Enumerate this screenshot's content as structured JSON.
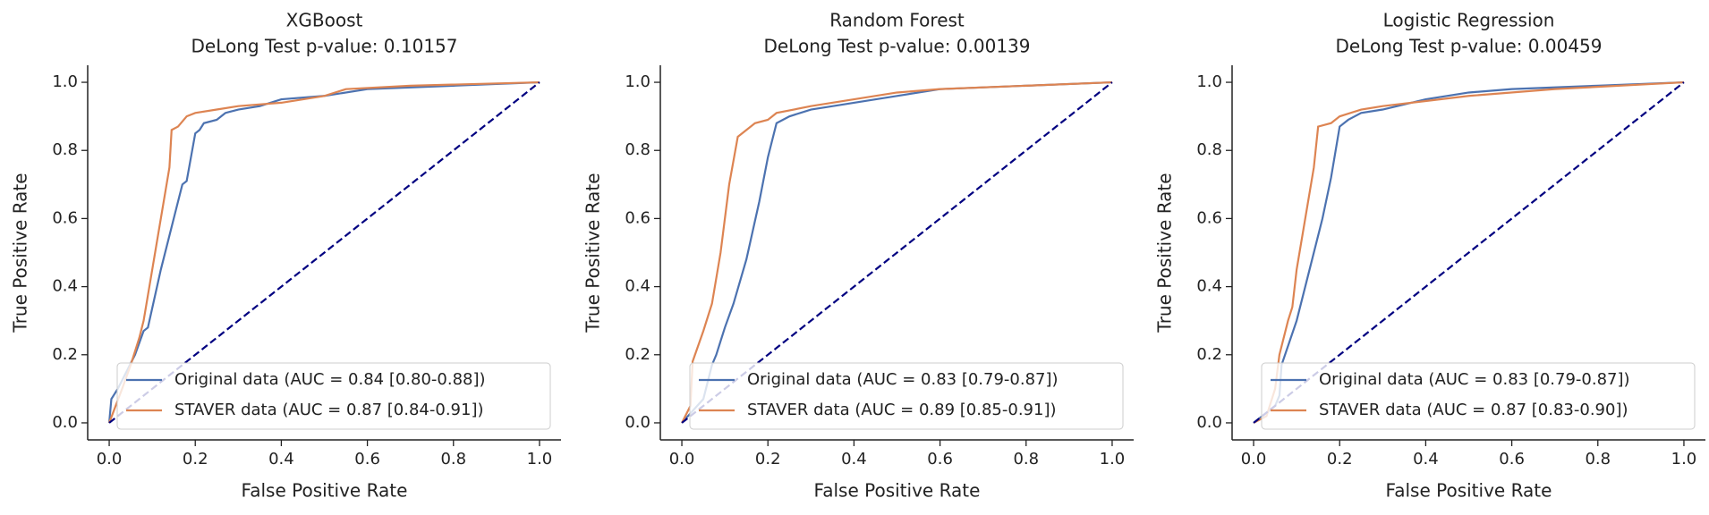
{
  "chart_data": [
    {
      "type": "line",
      "title": "XGBoost",
      "subtitle": "DeLong Test p-value: 0.10157",
      "xlabel": "False Positive Rate",
      "ylabel": "True Positive Rate",
      "xlim": [
        -0.05,
        1.05
      ],
      "ylim": [
        -0.05,
        1.05
      ],
      "xticks": [
        {
          "value": 0,
          "label": "0.0"
        },
        0.2,
        0.4,
        0.6,
        0.8,
        {
          "value": 1,
          "label": "1.0"
        }
      ],
      "yticks": [
        {
          "value": 0,
          "label": "0.0"
        },
        0.2,
        0.4,
        0.6,
        0.8,
        {
          "value": 1,
          "label": "1.0"
        }
      ],
      "legend": "lower right",
      "series": [
        {
          "name": "Original data (AUC = 0.84 [0.80-0.88])",
          "color": "#4c72b0",
          "x": [
            0,
            0.005,
            0.02,
            0.04,
            0.06,
            0.08,
            0.09,
            0.12,
            0.15,
            0.17,
            0.18,
            0.2,
            0.21,
            0.22,
            0.25,
            0.27,
            0.3,
            0.35,
            0.4,
            0.5,
            0.6,
            0.8,
            1
          ],
          "values": [
            0,
            0.07,
            0.1,
            0.15,
            0.2,
            0.27,
            0.28,
            0.45,
            0.6,
            0.7,
            0.71,
            0.85,
            0.86,
            0.88,
            0.89,
            0.91,
            0.92,
            0.93,
            0.95,
            0.96,
            0.98,
            0.99,
            1
          ]
        },
        {
          "name": "STAVER data (AUC = 0.87 [0.84-0.91])",
          "color": "#dd8452",
          "x": [
            0,
            0.03,
            0.05,
            0.07,
            0.08,
            0.1,
            0.12,
            0.14,
            0.145,
            0.16,
            0.18,
            0.2,
            0.25,
            0.3,
            0.4,
            0.5,
            0.55,
            0.7,
            1
          ],
          "values": [
            0,
            0.1,
            0.17,
            0.25,
            0.3,
            0.45,
            0.6,
            0.75,
            0.86,
            0.87,
            0.9,
            0.91,
            0.92,
            0.93,
            0.94,
            0.96,
            0.98,
            0.99,
            1
          ]
        }
      ],
      "diagonal": {
        "color": "#000080",
        "x": [
          0,
          1
        ],
        "values": [
          0,
          1
        ]
      }
    },
    {
      "type": "line",
      "title": "Random Forest",
      "subtitle": "DeLong Test p-value: 0.00139",
      "xlabel": "False Positive Rate",
      "ylabel": "True Positive Rate",
      "xlim": [
        -0.05,
        1.05
      ],
      "ylim": [
        -0.05,
        1.05
      ],
      "xticks": [
        {
          "value": 0,
          "label": "0.0"
        },
        0.2,
        0.4,
        0.6,
        0.8,
        {
          "value": 1,
          "label": "1.0"
        }
      ],
      "yticks": [
        {
          "value": 0,
          "label": "0.0"
        },
        0.2,
        0.4,
        0.6,
        0.8,
        {
          "value": 1,
          "label": "1.0"
        }
      ],
      "legend": "lower right",
      "series": [
        {
          "name": "Original data (AUC = 0.83 [0.79-0.87])",
          "color": "#4c72b0",
          "x": [
            0,
            0.05,
            0.07,
            0.08,
            0.1,
            0.12,
            0.15,
            0.18,
            0.2,
            0.22,
            0.25,
            0.3,
            0.4,
            0.5,
            0.6,
            0.8,
            1
          ],
          "values": [
            0,
            0.07,
            0.17,
            0.2,
            0.28,
            0.35,
            0.48,
            0.65,
            0.78,
            0.88,
            0.9,
            0.92,
            0.94,
            0.96,
            0.98,
            0.99,
            1
          ]
        },
        {
          "name": "STAVER data (AUC = 0.89 [0.85-0.91])",
          "color": "#dd8452",
          "x": [
            0,
            0.02,
            0.025,
            0.05,
            0.07,
            0.09,
            0.11,
            0.13,
            0.15,
            0.17,
            0.2,
            0.22,
            0.3,
            0.4,
            0.5,
            0.6,
            0.8,
            1
          ],
          "values": [
            0,
            0.05,
            0.18,
            0.27,
            0.35,
            0.5,
            0.7,
            0.84,
            0.86,
            0.88,
            0.89,
            0.91,
            0.93,
            0.95,
            0.97,
            0.98,
            0.99,
            1
          ]
        }
      ],
      "diagonal": {
        "color": "#000080",
        "x": [
          0,
          1
        ],
        "values": [
          0,
          1
        ]
      }
    },
    {
      "type": "line",
      "title": "Logistic Regression",
      "subtitle": "DeLong Test p-value: 0.00459",
      "xlabel": "False Positive Rate",
      "ylabel": "True Positive Rate",
      "xlim": [
        -0.05,
        1.05
      ],
      "ylim": [
        -0.05,
        1.05
      ],
      "xticks": [
        {
          "value": 0,
          "label": "0.0"
        },
        0.2,
        0.4,
        0.6,
        0.8,
        {
          "value": 1,
          "label": "1.0"
        }
      ],
      "yticks": [
        {
          "value": 0,
          "label": "0.0"
        },
        0.2,
        0.4,
        0.6,
        0.8,
        {
          "value": 1,
          "label": "1.0"
        }
      ],
      "legend": "lower right",
      "series": [
        {
          "name": "Original data (AUC = 0.83 [0.79-0.87])",
          "color": "#4c72b0",
          "x": [
            0,
            0.05,
            0.06,
            0.065,
            0.1,
            0.13,
            0.16,
            0.18,
            0.2,
            0.22,
            0.25,
            0.3,
            0.4,
            0.5,
            0.6,
            0.8,
            1
          ],
          "values": [
            0,
            0.05,
            0.08,
            0.17,
            0.3,
            0.45,
            0.6,
            0.72,
            0.87,
            0.89,
            0.91,
            0.92,
            0.95,
            0.97,
            0.98,
            0.99,
            1
          ]
        },
        {
          "name": "STAVER data (AUC = 0.87 [0.83-0.90])",
          "color": "#dd8452",
          "x": [
            0,
            0.03,
            0.05,
            0.06,
            0.08,
            0.09,
            0.1,
            0.12,
            0.14,
            0.15,
            0.18,
            0.2,
            0.25,
            0.3,
            0.4,
            0.5,
            0.7,
            1
          ],
          "values": [
            0,
            0.02,
            0.1,
            0.2,
            0.3,
            0.34,
            0.45,
            0.6,
            0.75,
            0.87,
            0.88,
            0.9,
            0.92,
            0.93,
            0.945,
            0.96,
            0.98,
            1
          ]
        }
      ],
      "diagonal": {
        "color": "#000080",
        "x": [
          0,
          1
        ],
        "values": [
          0,
          1
        ]
      }
    }
  ]
}
